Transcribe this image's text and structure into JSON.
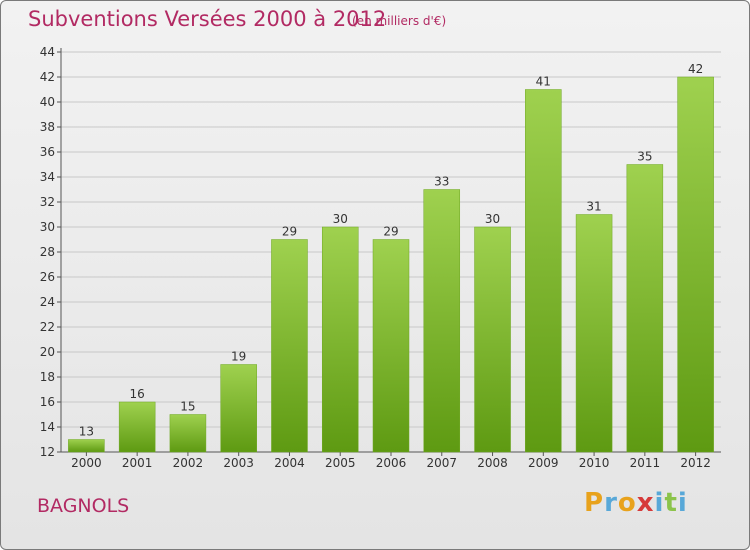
{
  "header": {
    "title": "Subventions Versées 2000 à 2012",
    "subtitle": "(en milliers d'€)"
  },
  "footer": {
    "commune": "BAGNOLS",
    "logo": {
      "letters": [
        "P",
        "r",
        "o",
        "x",
        "i",
        "t",
        "i"
      ],
      "colors": [
        "#e8a21c",
        "#58a8d8",
        "#e8a21c",
        "#d63a3a",
        "#58a8d8",
        "#8bc34a",
        "#58a8d8"
      ]
    }
  },
  "chart_data": {
    "type": "bar",
    "title": "Subventions Versées 2000 à 2012",
    "subtitle": "(en milliers d'€)",
    "categories": [
      "2000",
      "2001",
      "2002",
      "2003",
      "2004",
      "2005",
      "2006",
      "2007",
      "2008",
      "2009",
      "2010",
      "2011",
      "2012"
    ],
    "values": [
      13,
      16,
      15,
      19,
      29,
      30,
      29,
      33,
      30,
      41,
      31,
      35,
      42
    ],
    "ylim": [
      12,
      44
    ],
    "yticks": [
      12,
      14,
      16,
      18,
      20,
      22,
      24,
      26,
      28,
      30,
      32,
      34,
      36,
      38,
      40,
      42,
      44
    ],
    "grid": true,
    "colors": {
      "bar_top": "#9fd14f",
      "bar_bottom": "#5e9a12",
      "grid": "#c8c8c8",
      "axis": "#555555"
    }
  }
}
